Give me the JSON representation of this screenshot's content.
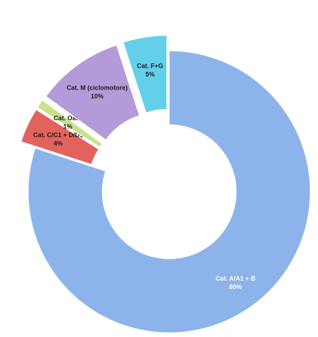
{
  "chart_data": {
    "type": "pie",
    "categories": [
      "Cat. A/A1  + B",
      "Cat. C/C1 + D/D1",
      "Cat. Oaut",
      "Cat. M (ciclomotore)",
      "Cat. F+G"
    ],
    "values": [
      80,
      4,
      1,
      10,
      5
    ],
    "value_labels": [
      "80%",
      "4%",
      "1%",
      "10%",
      "5%"
    ],
    "colors": [
      "#8db4ea",
      "#e4625c",
      "#c6e28c",
      "#b29bd8",
      "#62d0e8"
    ],
    "label_colors": [
      "#ffffff",
      "#1a1a1a",
      "#1a1a1a",
      "#1a1a1a",
      "#1a1a1a"
    ]
  }
}
